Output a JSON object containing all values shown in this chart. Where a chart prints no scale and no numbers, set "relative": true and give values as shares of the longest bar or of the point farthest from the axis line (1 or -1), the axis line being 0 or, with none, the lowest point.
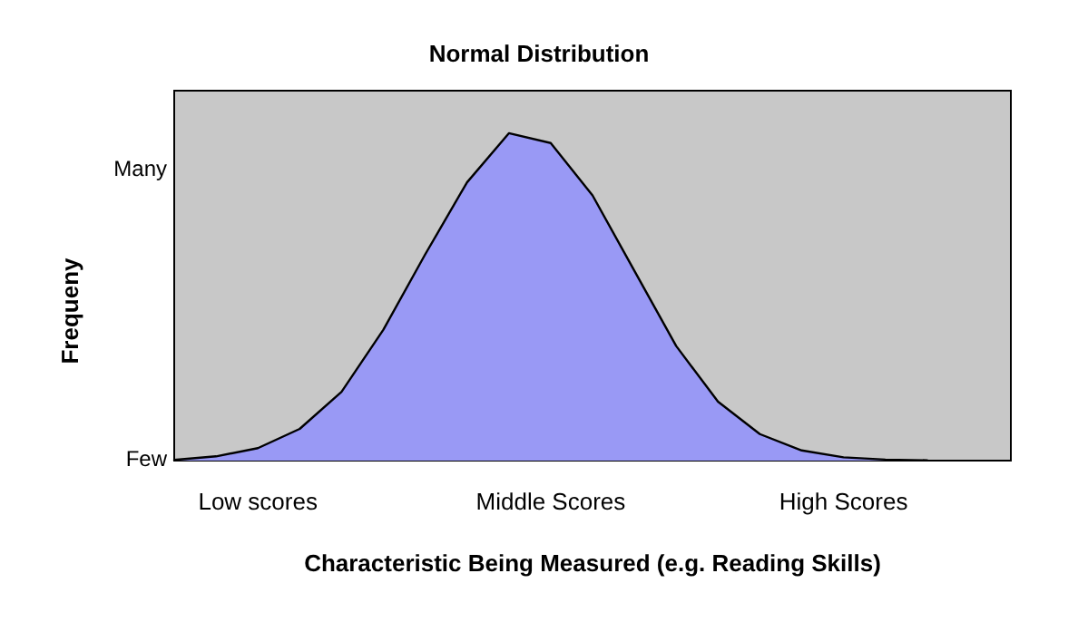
{
  "chart_data": {
    "type": "area",
    "title": "Normal Distribution",
    "xlabel": "Characteristic Being Measured (e.g. Reading Skills)",
    "ylabel": "Frequeny",
    "relative": true,
    "categories": [
      null,
      null,
      "Low scores",
      null,
      null,
      null,
      null,
      null,
      null,
      "Middle Scores",
      null,
      null,
      null,
      null,
      null,
      null,
      "High Scores",
      null,
      null,
      null,
      null
    ],
    "series": [
      {
        "color": "#9999f5",
        "values": [
          0.002,
          0.013,
          0.038,
          0.097,
          0.21,
          0.4,
          0.63,
          0.85,
          1,
          0.97,
          0.81,
          0.58,
          0.35,
          0.18,
          0.081,
          0.031,
          0.01,
          0.003,
          0.001,
          null,
          null
        ]
      }
    ],
    "annotations": [
      "Many",
      "Few"
    ],
    "grid": false,
    "marker": "none",
    "line_style": "solid"
  }
}
